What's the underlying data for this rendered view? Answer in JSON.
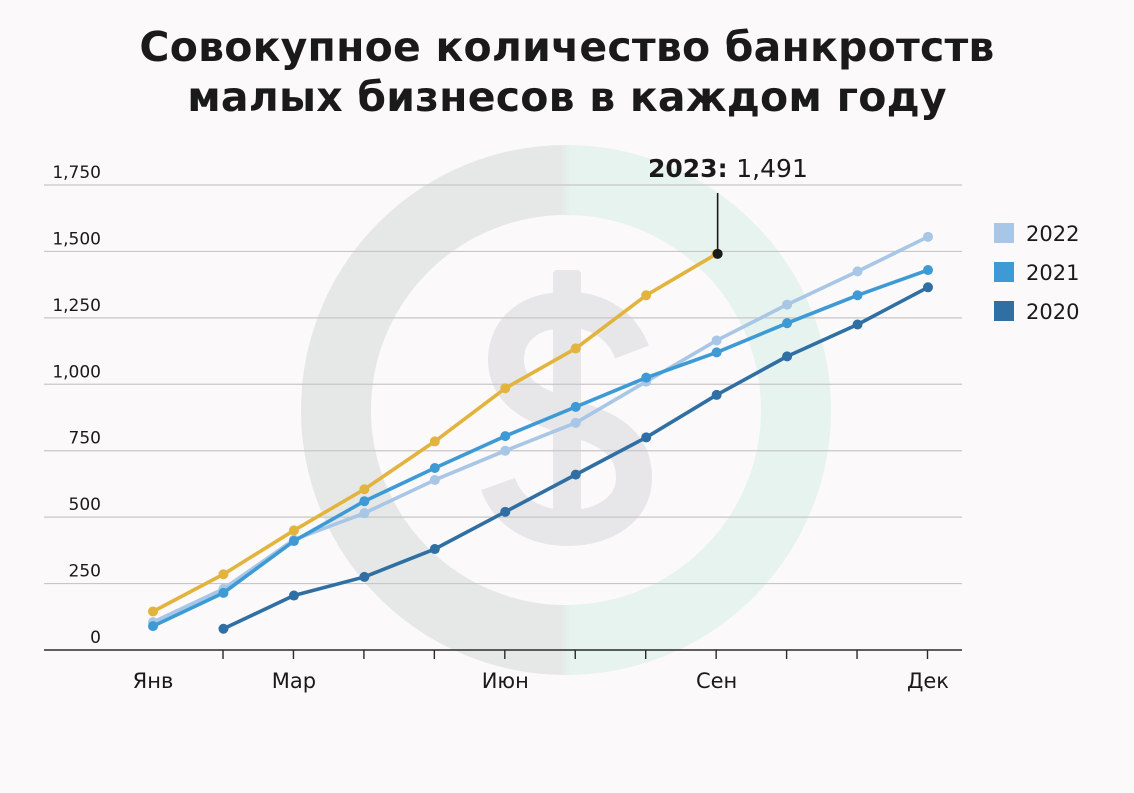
{
  "chart_data": {
    "type": "line",
    "title_line1": "Совокупное количество банкротств",
    "title_line2": "малых бизнесов в каждом году",
    "x": [
      1,
      2,
      3,
      4,
      5,
      6,
      7,
      8,
      9,
      10,
      11,
      12
    ],
    "x_tick_labels": [
      {
        "x": 1,
        "label": "Янв"
      },
      {
        "x": 3,
        "label": "Мар"
      },
      {
        "x": 6,
        "label": "Июн"
      },
      {
        "x": 9,
        "label": "Сен"
      },
      {
        "x": 12,
        "label": "Дек"
      }
    ],
    "ylim": [
      0,
      1750
    ],
    "yticks": [
      0,
      250,
      500,
      750,
      1000,
      1250,
      1500,
      1750
    ],
    "ytick_labels": [
      "0",
      "250",
      "500",
      "750",
      "1,000",
      "1,250",
      "1,500",
      "1,750"
    ],
    "grid": "horizontal",
    "legend_position": "right",
    "series": [
      {
        "name": "2022",
        "color": "#a8c6e6",
        "values": [
          105,
          230,
          415,
          515,
          640,
          750,
          855,
          1010,
          1165,
          1300,
          1425,
          1555
        ]
      },
      {
        "name": "2021",
        "color": "#3d9ad5",
        "values": [
          90,
          215,
          410,
          560,
          685,
          805,
          915,
          1025,
          1120,
          1230,
          1335,
          1430
        ]
      },
      {
        "name": "2020",
        "color": "#2f6fa3",
        "values": [
          null,
          80,
          205,
          275,
          380,
          520,
          660,
          800,
          960,
          1105,
          1225,
          1365
        ]
      },
      {
        "name": "2023",
        "color": "#e2b43e",
        "values": [
          145,
          285,
          450,
          605,
          785,
          985,
          1135,
          1335,
          1491,
          null,
          null,
          null
        ]
      }
    ],
    "legend": [
      "2022",
      "2021",
      "2020"
    ],
    "annotation": {
      "series": "2023",
      "year": "2023:",
      "value": "1,491",
      "x": 9,
      "y": 1491
    }
  }
}
